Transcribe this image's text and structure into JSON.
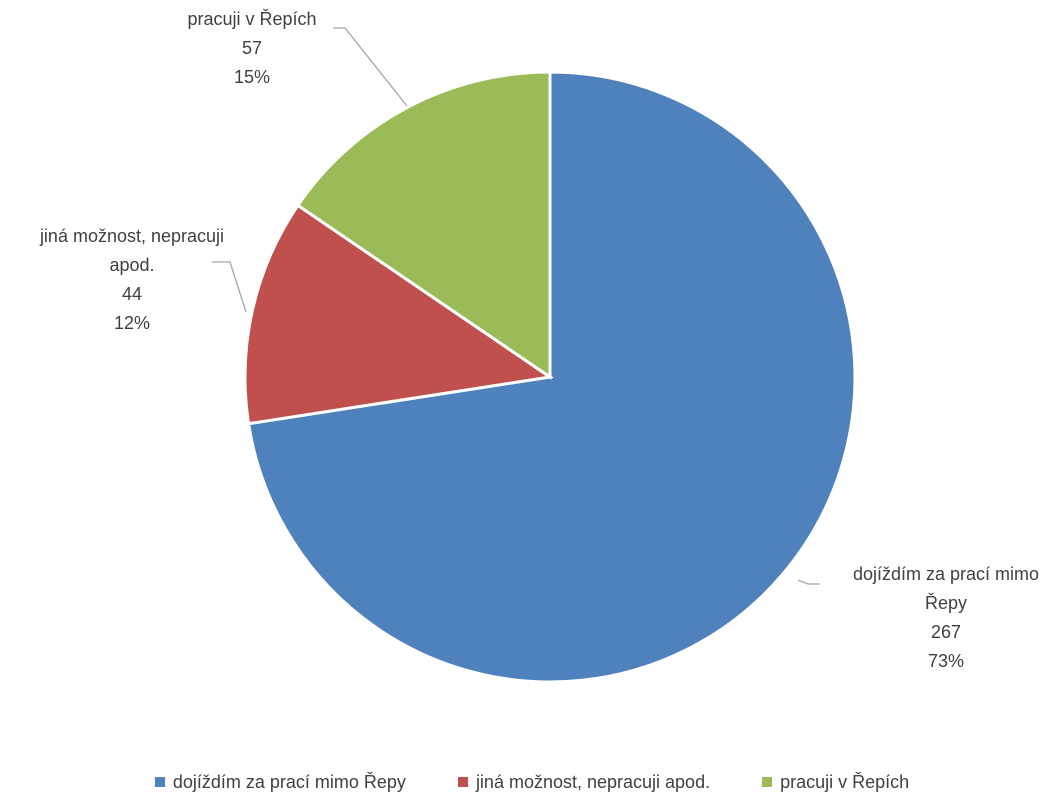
{
  "chart_data": {
    "type": "pie",
    "title": "",
    "slices": [
      {
        "label": "dojíždím za prací mimo Řepy",
        "label_lines": [
          "dojíždím za prací mimo",
          "Řepy"
        ],
        "value": 267,
        "percent_label": "73%",
        "value_label": "267",
        "color": "#4F81BD"
      },
      {
        "label": "jiná možnost, nepracuji apod.",
        "label_lines": [
          "jiná možnost, nepracuji",
          "apod."
        ],
        "value": 44,
        "percent_label": "12%",
        "value_label": "44",
        "color": "#C0504D"
      },
      {
        "label": "pracuji v Řepích",
        "label_lines": [
          "pracuji v Řepích"
        ],
        "value": 57,
        "percent_label": "15%",
        "value_label": "57",
        "color": "#9BBB59"
      }
    ],
    "legend_position": "bottom",
    "start_angle_deg": 0,
    "direction": "clockwise"
  }
}
